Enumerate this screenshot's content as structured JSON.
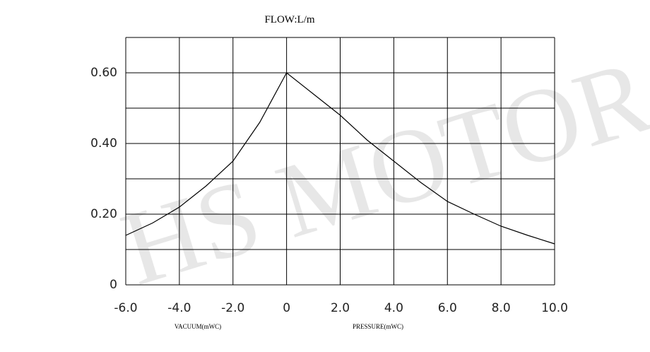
{
  "chart_data": {
    "type": "line",
    "title": "FLOW:L/m",
    "watermark": "HS MOTOR",
    "x_labels": [
      "VACUUM(mWC)",
      "PRESSURE(mWC)"
    ],
    "x": [
      -6,
      -5,
      -4,
      -3,
      -2,
      -1,
      0,
      1,
      2,
      3,
      4,
      5,
      6,
      7,
      8,
      9,
      10
    ],
    "series": [
      {
        "name": "FLOW",
        "color": "#000000",
        "values": [
          0.14,
          0.175,
          0.22,
          0.28,
          0.35,
          0.46,
          0.6,
          0.54,
          0.48,
          0.41,
          0.35,
          0.29,
          0.236,
          0.2,
          0.166,
          0.14,
          0.116
        ]
      }
    ],
    "xlim": [
      -6,
      10
    ],
    "xticks": [
      {
        "value": -6,
        "label": "-6.0"
      },
      {
        "value": -4,
        "label": "-4.0"
      },
      {
        "value": -2,
        "label": "-2.0"
      },
      0,
      {
        "value": 2,
        "label": "2.0"
      },
      {
        "value": 4,
        "label": "4.0"
      },
      {
        "value": 6,
        "label": "6.0"
      },
      {
        "value": 8,
        "label": "8.0"
      },
      {
        "value": 10,
        "label": "10.0"
      }
    ],
    "ylim": [
      0,
      0.7
    ],
    "yticks": [
      0,
      {
        "value": 0.1,
        "label": null
      },
      {
        "value": 0.2,
        "label": "0.20"
      },
      {
        "value": 0.3,
        "label": null
      },
      {
        "value": 0.4,
        "label": "0.40"
      },
      {
        "value": 0.5,
        "label": null
      },
      {
        "value": 0.6,
        "label": "0.60"
      },
      {
        "value": 0.7,
        "label": null
      }
    ],
    "grid": true
  }
}
